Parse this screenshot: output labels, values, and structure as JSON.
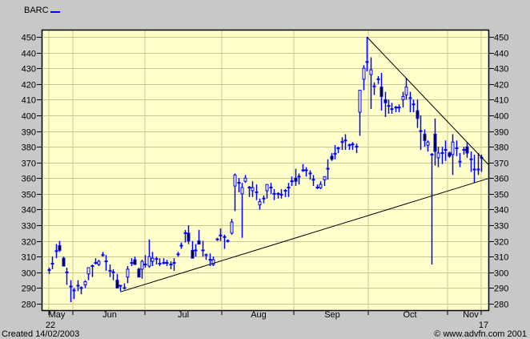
{
  "chart_data": {
    "type": "candlestick",
    "legend": {
      "label": "BARC",
      "color": "#0000ff",
      "placement": "top-left"
    },
    "ylim": [
      275,
      453
    ],
    "yticks": [
      280,
      290,
      300,
      310,
      320,
      330,
      340,
      350,
      360,
      370,
      380,
      390,
      400,
      410,
      420,
      430,
      440,
      450
    ],
    "xtick_labels": [
      {
        "label": "May",
        "sub": "22"
      },
      {
        "label": "Jun",
        "sub": ""
      },
      {
        "label": "Jul",
        "sub": ""
      },
      {
        "label": "Aug",
        "sub": ""
      },
      {
        "label": "Sep",
        "sub": ""
      },
      {
        "label": "Oct",
        "sub": ""
      },
      {
        "label": "Nov",
        "sub": "17"
      }
    ],
    "grid": true,
    "colors": {
      "background": "#c8c8c8",
      "plot": "#ffffcc",
      "grid": "#cbc48f",
      "up": "#0000ff",
      "down": "#000000"
    },
    "candles_ohlc": [
      [
        301,
        303,
        299,
        302
      ],
      [
        305,
        310,
        302,
        306
      ],
      [
        313,
        318,
        309,
        314
      ],
      [
        317,
        320,
        313,
        314
      ],
      [
        309,
        310,
        304,
        304
      ],
      [
        300,
        303,
        292,
        300
      ],
      [
        291,
        295,
        281,
        291
      ],
      [
        288,
        290,
        283,
        289
      ],
      [
        291,
        295,
        288,
        292
      ],
      [
        290,
        291,
        286,
        290
      ],
      [
        292,
        295,
        290,
        294
      ],
      [
        299,
        303,
        295,
        303
      ],
      [
        304,
        305,
        297,
        304
      ],
      [
        306,
        309,
        305,
        306
      ],
      [
        305,
        308,
        304,
        307
      ],
      [
        311,
        313,
        310,
        311
      ],
      [
        307,
        311,
        301,
        307
      ],
      [
        301,
        305,
        297,
        301
      ],
      [
        300,
        302,
        295,
        300
      ],
      [
        295,
        299,
        290,
        290
      ],
      [
        291,
        292,
        288,
        292
      ],
      [
        290,
        293,
        289,
        290
      ],
      [
        297,
        304,
        293,
        302
      ],
      [
        306,
        309,
        304,
        306
      ],
      [
        308,
        310,
        305,
        305
      ],
      [
        302,
        303,
        297,
        297
      ],
      [
        302,
        308,
        296,
        307
      ],
      [
        305,
        311,
        303,
        305
      ],
      [
        304,
        321,
        303,
        310
      ],
      [
        307,
        313,
        304,
        309
      ],
      [
        308,
        310,
        305,
        309
      ],
      [
        306,
        309,
        304,
        305
      ],
      [
        306,
        309,
        305,
        306
      ],
      [
        306,
        308,
        304,
        306
      ],
      [
        305,
        307,
        302,
        305
      ],
      [
        306,
        309,
        301,
        306
      ],
      [
        311,
        313,
        310,
        312
      ],
      [
        317,
        319,
        315,
        317
      ],
      [
        325,
        327,
        319,
        325
      ],
      [
        325,
        330,
        318,
        320
      ],
      [
        314,
        320,
        309,
        309
      ],
      [
        314,
        318,
        310,
        314
      ],
      [
        320,
        327,
        318,
        318
      ],
      [
        314,
        320,
        310,
        314
      ],
      [
        311,
        312,
        308,
        311
      ],
      [
        308,
        312,
        304,
        308
      ],
      [
        305,
        310,
        304,
        308
      ],
      [
        321,
        322,
        320,
        321
      ],
      [
        323,
        328,
        320,
        324
      ],
      [
        323,
        324,
        315,
        322
      ],
      [
        320,
        321,
        319,
        320
      ],
      [
        325,
        334,
        324,
        332
      ],
      [
        355,
        363,
        339,
        362
      ],
      [
        357,
        360,
        351,
        357
      ],
      [
        350,
        357,
        322,
        354
      ],
      [
        358,
        362,
        357,
        360
      ],
      [
        354,
        355,
        348,
        354
      ],
      [
        352,
        358,
        348,
        354
      ],
      [
        351,
        356,
        346,
        351
      ],
      [
        343,
        347,
        340,
        345
      ],
      [
        347,
        349,
        344,
        347
      ],
      [
        352,
        356,
        347,
        356
      ],
      [
        354,
        357,
        350,
        354
      ],
      [
        350,
        353,
        346,
        350
      ],
      [
        350,
        351,
        347,
        350
      ],
      [
        349,
        353,
        347,
        350
      ],
      [
        352,
        353,
        348,
        352
      ],
      [
        354,
        357,
        348,
        354
      ],
      [
        358,
        361,
        355,
        358
      ],
      [
        360,
        366,
        355,
        358
      ],
      [
        361,
        363,
        356,
        361
      ],
      [
        365,
        369,
        364,
        365
      ],
      [
        365,
        367,
        361,
        365
      ],
      [
        363,
        365,
        359,
        363
      ],
      [
        359,
        362,
        355,
        359
      ],
      [
        354,
        356,
        353,
        354
      ],
      [
        354,
        358,
        353,
        356
      ],
      [
        359,
        361,
        355,
        361
      ],
      [
        366,
        372,
        359,
        366
      ],
      [
        374,
        376,
        371,
        372
      ],
      [
        375,
        381,
        372,
        376
      ],
      [
        379,
        380,
        376,
        379
      ],
      [
        383,
        386,
        378,
        383
      ],
      [
        384,
        388,
        378,
        384
      ],
      [
        381,
        382,
        378,
        381
      ],
      [
        381,
        383,
        378,
        382
      ],
      [
        380,
        382,
        376,
        380
      ],
      [
        402,
        416,
        387,
        416
      ],
      [
        423,
        432,
        416,
        430
      ],
      [
        434,
        450,
        428,
        434
      ],
      [
        426,
        437,
        404,
        429
      ],
      [
        419,
        421,
        413,
        418
      ],
      [
        423,
        425,
        420,
        423
      ],
      [
        418,
        427,
        403,
        412
      ],
      [
        410,
        415,
        399,
        408
      ],
      [
        406,
        410,
        401,
        406
      ],
      [
        404,
        408,
        401,
        404
      ],
      [
        405,
        406,
        402,
        405
      ],
      [
        405,
        407,
        402,
        405
      ],
      [
        410,
        415,
        405,
        412
      ],
      [
        413,
        424,
        410,
        418
      ],
      [
        411,
        415,
        402,
        411
      ],
      [
        407,
        410,
        402,
        407
      ],
      [
        403,
        410,
        392,
        398
      ],
      [
        390,
        400,
        378,
        390
      ],
      [
        388,
        391,
        380,
        384
      ],
      [
        381,
        384,
        377,
        383
      ],
      [
        375,
        376,
        305,
        375
      ],
      [
        388,
        398,
        368,
        377
      ],
      [
        373,
        380,
        367,
        376
      ],
      [
        376,
        380,
        369,
        376
      ],
      [
        378,
        384,
        371,
        378
      ],
      [
        376,
        377,
        373,
        374
      ],
      [
        375,
        388,
        362,
        383
      ],
      [
        379,
        384,
        374,
        379
      ],
      [
        371,
        376,
        367,
        370
      ],
      [
        378,
        380,
        375,
        378
      ],
      [
        380,
        383,
        373,
        376
      ],
      [
        372,
        377,
        364,
        372
      ],
      [
        365,
        375,
        357,
        366
      ],
      [
        365,
        376,
        362,
        366
      ],
      [
        373,
        375,
        364,
        373
      ]
    ],
    "trendlines": [
      {
        "name": "support",
        "start": {
          "bar": 21,
          "price": 287.5
        },
        "end": {
          "bar": 124.3,
          "price": 360
        }
      },
      {
        "name": "resistance",
        "start": {
          "bar": 90,
          "price": 450
        },
        "end": {
          "bar": 124.3,
          "price": 368
        }
      }
    ]
  },
  "footer": {
    "created": "Created 14/02/2003",
    "copyright": "© www.advfn.com 2001"
  }
}
